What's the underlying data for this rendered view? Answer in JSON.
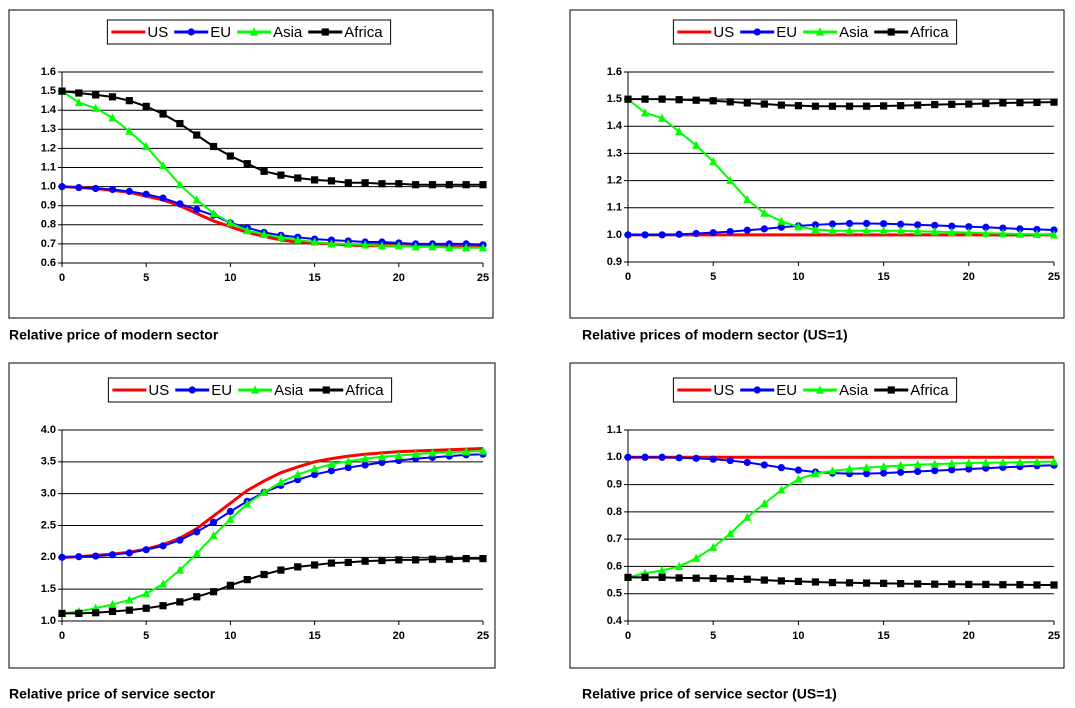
{
  "chart_data": [
    {
      "type": "line",
      "title": "Relative price of modern sector",
      "x": [
        0,
        1,
        2,
        3,
        4,
        5,
        6,
        7,
        8,
        9,
        10,
        11,
        12,
        13,
        14,
        15,
        16,
        17,
        18,
        19,
        20,
        21,
        22,
        23,
        24,
        25
      ],
      "xlim": [
        0,
        25
      ],
      "xticks": [
        0,
        5,
        10,
        15,
        20,
        25
      ],
      "ylim": [
        0.6,
        1.6
      ],
      "yticks": [
        0.6,
        0.7,
        0.8,
        0.9,
        {
          "value": 1,
          "label": "1.0"
        },
        1.1,
        1.2,
        1.3,
        1.4,
        1.5,
        1.6
      ],
      "grid": true,
      "legend": "top",
      "series": [
        {
          "name": "US",
          "color": "#ff0000",
          "marker": "none",
          "values": [
            1.0,
            0.995,
            0.99,
            0.98,
            0.97,
            0.95,
            0.93,
            0.9,
            0.86,
            0.82,
            0.79,
            0.76,
            0.74,
            0.72,
            0.71,
            0.705,
            0.7,
            0.695,
            0.69,
            0.69,
            0.69,
            0.69,
            0.69,
            0.69,
            0.69,
            0.69
          ]
        },
        {
          "name": "EU",
          "color": "#0000ff",
          "marker": "circle",
          "values": [
            1.0,
            0.995,
            0.99,
            0.985,
            0.975,
            0.96,
            0.94,
            0.91,
            0.88,
            0.85,
            0.81,
            0.785,
            0.76,
            0.745,
            0.735,
            0.725,
            0.72,
            0.715,
            0.71,
            0.71,
            0.705,
            0.7,
            0.7,
            0.7,
            0.7,
            0.695
          ]
        },
        {
          "name": "Asia",
          "color": "#00ff00",
          "marker": "triangle",
          "values": [
            1.5,
            1.44,
            1.41,
            1.36,
            1.29,
            1.21,
            1.11,
            1.01,
            0.93,
            0.86,
            0.81,
            0.77,
            0.75,
            0.735,
            0.72,
            0.71,
            0.7,
            0.7,
            0.695,
            0.69,
            0.69,
            0.685,
            0.685,
            0.68,
            0.68,
            0.68
          ]
        },
        {
          "name": "Africa",
          "color": "#000000",
          "marker": "square",
          "values": [
            1.5,
            1.49,
            1.48,
            1.47,
            1.45,
            1.42,
            1.38,
            1.33,
            1.27,
            1.21,
            1.16,
            1.12,
            1.08,
            1.06,
            1.045,
            1.035,
            1.03,
            1.02,
            1.02,
            1.015,
            1.015,
            1.01,
            1.01,
            1.01,
            1.01,
            1.01
          ]
        }
      ]
    },
    {
      "type": "line",
      "title": "Relative prices of modern sector (US=1)",
      "x": [
        0,
        1,
        2,
        3,
        4,
        5,
        6,
        7,
        8,
        9,
        10,
        11,
        12,
        13,
        14,
        15,
        16,
        17,
        18,
        19,
        20,
        21,
        22,
        23,
        24,
        25
      ],
      "xlim": [
        0,
        25
      ],
      "xticks": [
        0,
        5,
        10,
        15,
        20,
        25
      ],
      "ylim": [
        0.9,
        1.6
      ],
      "yticks": [
        0.9,
        {
          "value": 1,
          "label": "1.0"
        },
        1.1,
        1.2,
        1.3,
        1.4,
        1.5,
        1.6
      ],
      "grid": true,
      "legend": "top",
      "series": [
        {
          "name": "US",
          "color": "#ff0000",
          "marker": "none",
          "values": [
            1,
            1,
            1,
            1,
            1,
            1,
            1,
            1,
            1,
            1,
            1,
            1,
            1,
            1,
            1,
            1,
            1,
            1,
            1,
            1,
            1,
            1,
            1,
            1,
            1,
            1
          ]
        },
        {
          "name": "EU",
          "color": "#0000ff",
          "marker": "circle",
          "values": [
            1.0,
            1.0,
            1.0,
            1.002,
            1.005,
            1.008,
            1.012,
            1.017,
            1.022,
            1.028,
            1.033,
            1.037,
            1.04,
            1.042,
            1.042,
            1.041,
            1.039,
            1.037,
            1.035,
            1.032,
            1.03,
            1.028,
            1.025,
            1.022,
            1.02,
            1.018
          ]
        },
        {
          "name": "Asia",
          "color": "#00ff00",
          "marker": "triangle",
          "values": [
            1.5,
            1.45,
            1.43,
            1.38,
            1.33,
            1.27,
            1.2,
            1.13,
            1.08,
            1.05,
            1.03,
            1.02,
            1.015,
            1.015,
            1.015,
            1.015,
            1.015,
            1.013,
            1.012,
            1.01,
            1.008,
            1.006,
            1.005,
            1.003,
            1.002,
            1.0
          ]
        },
        {
          "name": "Africa",
          "color": "#000000",
          "marker": "square",
          "values": [
            1.5,
            1.5,
            1.5,
            1.498,
            1.496,
            1.494,
            1.49,
            1.486,
            1.482,
            1.478,
            1.476,
            1.474,
            1.474,
            1.474,
            1.474,
            1.475,
            1.476,
            1.478,
            1.48,
            1.481,
            1.482,
            1.484,
            1.486,
            1.487,
            1.488,
            1.489
          ]
        }
      ]
    },
    {
      "type": "line",
      "title": "Relative price of service sector",
      "x": [
        0,
        1,
        2,
        3,
        4,
        5,
        6,
        7,
        8,
        9,
        10,
        11,
        12,
        13,
        14,
        15,
        16,
        17,
        18,
        19,
        20,
        21,
        22,
        23,
        24,
        25
      ],
      "xlim": [
        0,
        25
      ],
      "xticks": [
        0,
        5,
        10,
        15,
        20,
        25
      ],
      "ylim": [
        1,
        4
      ],
      "yticks": [
        {
          "value": 1,
          "label": "1.0"
        },
        1.5,
        {
          "value": 2,
          "label": "2.0"
        },
        2.5,
        {
          "value": 3,
          "label": "3.0"
        },
        3.5,
        {
          "value": 4,
          "label": "4.0"
        }
      ],
      "grid": true,
      "legend": "top",
      "series": [
        {
          "name": "US",
          "color": "#ff0000",
          "marker": "none",
          "values": [
            2.0,
            2.01,
            2.03,
            2.05,
            2.08,
            2.13,
            2.2,
            2.3,
            2.45,
            2.65,
            2.85,
            3.05,
            3.2,
            3.33,
            3.42,
            3.5,
            3.55,
            3.59,
            3.62,
            3.64,
            3.66,
            3.67,
            3.68,
            3.69,
            3.7,
            3.71
          ]
        },
        {
          "name": "EU",
          "color": "#0000ff",
          "marker": "circle",
          "values": [
            2.0,
            2.01,
            2.02,
            2.04,
            2.07,
            2.12,
            2.18,
            2.27,
            2.4,
            2.55,
            2.72,
            2.88,
            3.02,
            3.13,
            3.22,
            3.3,
            3.36,
            3.41,
            3.45,
            3.49,
            3.52,
            3.55,
            3.57,
            3.59,
            3.61,
            3.62
          ]
        },
        {
          "name": "Asia",
          "color": "#00ff00",
          "marker": "triangle",
          "values": [
            1.12,
            1.15,
            1.2,
            1.26,
            1.33,
            1.43,
            1.58,
            1.8,
            2.06,
            2.34,
            2.6,
            2.84,
            3.02,
            3.18,
            3.3,
            3.39,
            3.46,
            3.51,
            3.55,
            3.58,
            3.6,
            3.62,
            3.64,
            3.65,
            3.66,
            3.67
          ]
        },
        {
          "name": "Africa",
          "color": "#000000",
          "marker": "square",
          "values": [
            1.12,
            1.12,
            1.13,
            1.15,
            1.17,
            1.2,
            1.24,
            1.3,
            1.38,
            1.46,
            1.56,
            1.65,
            1.73,
            1.8,
            1.85,
            1.88,
            1.91,
            1.92,
            1.94,
            1.95,
            1.96,
            1.96,
            1.97,
            1.97,
            1.98,
            1.98
          ]
        }
      ]
    },
    {
      "type": "line",
      "title": "Relative price of service sector (US=1)",
      "x": [
        0,
        1,
        2,
        3,
        4,
        5,
        6,
        7,
        8,
        9,
        10,
        11,
        12,
        13,
        14,
        15,
        16,
        17,
        18,
        19,
        20,
        21,
        22,
        23,
        24,
        25
      ],
      "xlim": [
        0,
        25
      ],
      "xticks": [
        0,
        5,
        10,
        15,
        20,
        25
      ],
      "ylim": [
        0.4,
        1.1
      ],
      "yticks": [
        0.4,
        0.5,
        0.6,
        0.7,
        0.8,
        0.9,
        {
          "value": 1,
          "label": "1.0"
        },
        1.1
      ],
      "grid": true,
      "legend": "top",
      "series": [
        {
          "name": "US",
          "color": "#ff0000",
          "marker": "none",
          "values": [
            1,
            1,
            1,
            1,
            1,
            1,
            1,
            1,
            1,
            1,
            1,
            1,
            1,
            1,
            1,
            1,
            1,
            1,
            1,
            1,
            1,
            1,
            1,
            1,
            1,
            1
          ]
        },
        {
          "name": "EU",
          "color": "#0000ff",
          "marker": "circle",
          "values": [
            1.0,
            1.0,
            1.0,
            0.998,
            0.996,
            0.993,
            0.988,
            0.981,
            0.972,
            0.962,
            0.953,
            0.946,
            0.942,
            0.94,
            0.94,
            0.942,
            0.945,
            0.948,
            0.951,
            0.954,
            0.957,
            0.96,
            0.963,
            0.966,
            0.969,
            0.971
          ]
        },
        {
          "name": "Asia",
          "color": "#00ff00",
          "marker": "triangle",
          "values": [
            0.56,
            0.575,
            0.585,
            0.6,
            0.63,
            0.67,
            0.72,
            0.78,
            0.83,
            0.88,
            0.92,
            0.94,
            0.95,
            0.957,
            0.962,
            0.966,
            0.97,
            0.973,
            0.975,
            0.977,
            0.979,
            0.98,
            0.981,
            0.982,
            0.983,
            0.984
          ]
        },
        {
          "name": "Africa",
          "color": "#000000",
          "marker": "square",
          "values": [
            0.56,
            0.56,
            0.56,
            0.558,
            0.557,
            0.556,
            0.555,
            0.553,
            0.55,
            0.547,
            0.545,
            0.543,
            0.541,
            0.54,
            0.539,
            0.538,
            0.537,
            0.536,
            0.535,
            0.535,
            0.534,
            0.534,
            0.533,
            0.533,
            0.532,
            0.532
          ]
        }
      ]
    }
  ]
}
